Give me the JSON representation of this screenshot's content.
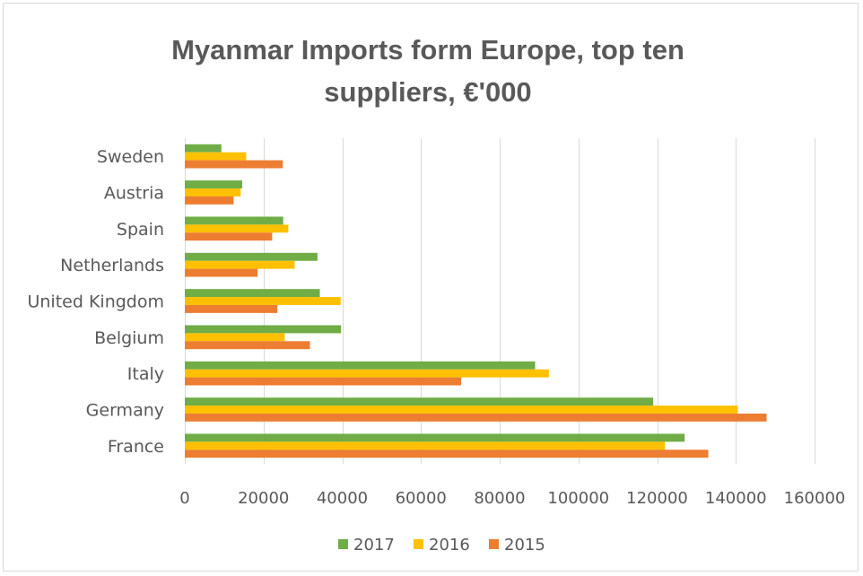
{
  "chart_data": {
    "type": "bar",
    "orientation": "horizontal",
    "title_lines": [
      "Myanmar Imports form Europe, top ten",
      "suppliers, €'000"
    ],
    "categories": [
      "France",
      "Germany",
      "Italy",
      "Belgium",
      "United Kingdom",
      "Netherlands",
      "Spain",
      "Austria",
      "Sweden"
    ],
    "series": [
      {
        "name": "2017",
        "color": "#70AD47",
        "values": [
          127000,
          119000,
          89000,
          39700,
          34300,
          33700,
          25000,
          14600,
          9300
        ]
      },
      {
        "name": "2016",
        "color": "#FFC000",
        "values": [
          122000,
          140500,
          92500,
          25400,
          39600,
          27900,
          26300,
          14200,
          15600
        ]
      },
      {
        "name": "2015",
        "color": "#ED7D31",
        "values": [
          133000,
          147800,
          70200,
          31800,
          23500,
          18500,
          22200,
          12400,
          24900
        ]
      }
    ],
    "xlim": [
      0,
      160000
    ],
    "xticks": [
      "0",
      "20000",
      "40000",
      "60000",
      "80000",
      "100000",
      "120000",
      "140000",
      "160000"
    ],
    "grid": "vertical",
    "legend_position": "bottom"
  }
}
